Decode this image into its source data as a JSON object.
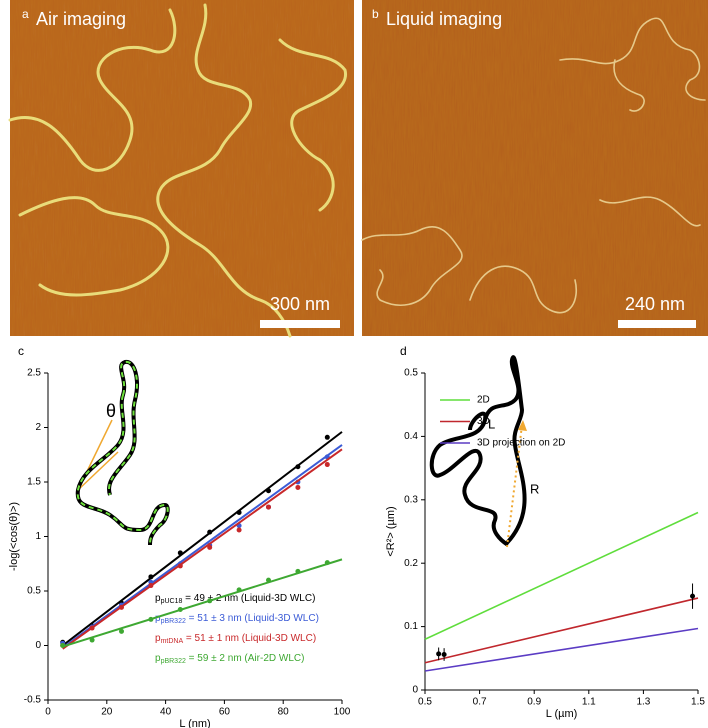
{
  "panels": [
    {
      "label": "a",
      "title": "Air imaging",
      "scale_bar": "300 nm"
    },
    {
      "label": "b",
      "title": "Liquid imaging",
      "scale_bar": "240 nm"
    }
  ],
  "chart_data": [
    {
      "type": "scatter",
      "panel_label": "c",
      "x_label": "L (nm)",
      "y_label": "-log(<cos(θ)>)",
      "xlim": [
        0,
        100
      ],
      "xticks": [
        0,
        20,
        40,
        60,
        80,
        100
      ],
      "ylim": [
        -0.5,
        2.5
      ],
      "yticks": [
        -0.5,
        0,
        0.5,
        1,
        1.5,
        2,
        2.5
      ],
      "x": [
        5,
        15,
        25,
        35,
        45,
        55,
        65,
        75,
        85,
        95
      ],
      "series": [
        {
          "name": [
            "p",
            "pUC18",
            " = 49 ± 2 nm (Liquid-3D WLC)"
          ],
          "color": "#000000",
          "values": [
            0.03,
            0.18,
            0.39,
            0.63,
            0.85,
            1.04,
            1.22,
            1.42,
            1.64,
            1.91
          ],
          "fit": {
            "x": [
              5,
              100
            ],
            "values": [
              0.0,
              1.96
            ]
          }
        },
        {
          "name": [
            "p",
            "pBR322",
            " = 51 ± 3 nm (Liquid-3D WLC)"
          ],
          "color": "#3b5bd6",
          "values": [
            0.02,
            0.17,
            0.37,
            0.58,
            0.75,
            0.92,
            1.1,
            1.27,
            1.5,
            1.73
          ],
          "fit": {
            "x": [
              5,
              100
            ],
            "values": [
              -0.02,
              1.84
            ]
          }
        },
        {
          "name": [
            "p",
            "mtDNA",
            " = 51 ± 1 nm (Liquid-3D WLC)"
          ],
          "color": "#c8282a",
          "values": [
            0.0,
            0.16,
            0.35,
            0.55,
            0.73,
            0.9,
            1.06,
            1.27,
            1.45,
            1.66
          ],
          "fit": {
            "x": [
              5,
              100
            ],
            "values": [
              -0.03,
              1.8
            ]
          }
        },
        {
          "name": [
            "p",
            "pBR322",
            " = 59 ± 2 nm (Air-2D WLC)"
          ],
          "color": "#3ea832",
          "values": [
            0.0,
            0.05,
            0.13,
            0.24,
            0.33,
            0.41,
            0.51,
            0.6,
            0.68,
            0.76
          ],
          "fit": {
            "x": [
              5,
              100
            ],
            "values": [
              -0.01,
              0.79
            ]
          }
        }
      ],
      "annotations": [
        "θ"
      ]
    },
    {
      "type": "line",
      "panel_label": "d",
      "x_label": "L (µm)",
      "y_label": "<R²> (µm)",
      "xlim": [
        0.5,
        1.5
      ],
      "xticks": [
        0.5,
        0.7,
        0.9,
        1.1,
        1.3,
        1.5
      ],
      "ylim": [
        0,
        0.5
      ],
      "yticks": [
        0,
        0.1,
        0.2,
        0.3,
        0.4,
        0.5
      ],
      "x": [
        0.5,
        1.5
      ],
      "series": [
        {
          "name": "2D",
          "color": "#5fdd3c",
          "values": [
            0.08,
            0.28
          ]
        },
        {
          "name": "3D",
          "color": "#c0272d",
          "values": [
            0.043,
            0.145
          ]
        },
        {
          "name": "3D projection on 2D",
          "color": "#5b3cc4",
          "values": [
            0.03,
            0.097
          ]
        }
      ],
      "points": {
        "x": [
          0.55,
          0.57,
          1.48
        ],
        "y": [
          0.057,
          0.056,
          0.148
        ],
        "error": [
          0.01,
          0.01,
          0.02
        ]
      },
      "annotations": [
        "L",
        "R"
      ]
    }
  ]
}
